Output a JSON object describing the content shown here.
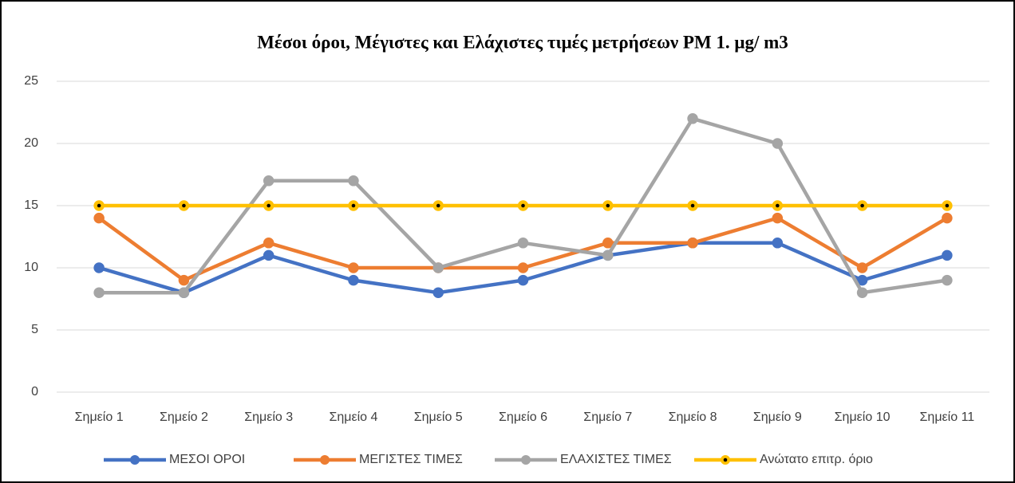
{
  "chart_data": {
    "type": "line",
    "title": "Μέσοι όροι,  Μέγιστες και  Ελάχιστες τιμές μετρήσεων PM 1. μg/ m3",
    "categories": [
      "Σημείο 1",
      "Σημείο 2",
      "Σημείο 3",
      "Σημείο 4",
      "Σημείο 5",
      "Σημείο 6",
      "Σημείο 7",
      "Σημείο 8",
      "Σημείο 9",
      "Σημείο 10",
      "Σημείο 11"
    ],
    "series": [
      {
        "name": "ΜΕΣΟΙ ΟΡΟΙ",
        "color": "#4472c4",
        "values": [
          10,
          8,
          11,
          9,
          8,
          9,
          11,
          12,
          12,
          9,
          11
        ]
      },
      {
        "name": "ΜΕΓΙΣΤΕΣ ΤΙΜΕΣ",
        "color": "#ed7d31",
        "values": [
          14,
          9,
          12,
          10,
          10,
          10,
          12,
          12,
          14,
          10,
          14
        ]
      },
      {
        "name": "ΕΛΑΧΙΣΤΕΣ ΤΙΜΕΣ",
        "color": "#a5a5a5",
        "values": [
          8,
          8,
          17,
          17,
          10,
          12,
          11,
          22,
          20,
          8,
          9
        ]
      },
      {
        "name": "Ανώτατο επιτρ. όριο",
        "color": "#ffc000",
        "marker_center_color": "#000000",
        "values": [
          15,
          15,
          15,
          15,
          15,
          15,
          15,
          15,
          15,
          15,
          15
        ]
      }
    ],
    "ylim": [
      0,
      25
    ],
    "yticks": [
      0,
      5,
      10,
      15,
      20,
      25
    ],
    "grid": true,
    "legend": "bottom"
  }
}
